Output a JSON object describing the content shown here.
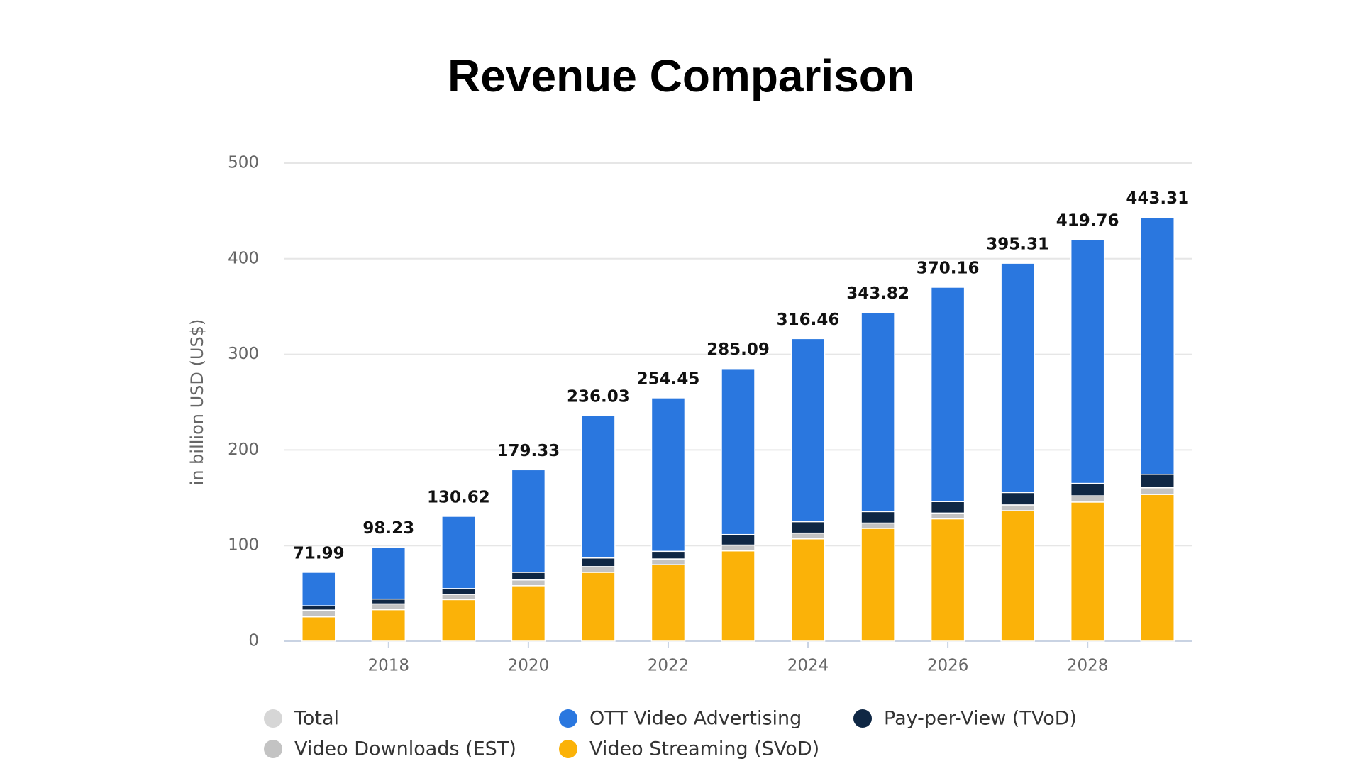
{
  "chart_data": {
    "type": "stacked-bar",
    "title": "Revenue Comparison",
    "y_label": "in billion USD (US$)",
    "categories": [
      null,
      "2018",
      null,
      "2020",
      null,
      "2022",
      null,
      "2024",
      null,
      "2026",
      null,
      "2028",
      null
    ],
    "ylim": [
      0,
      500
    ],
    "yticks": [
      0,
      100,
      200,
      300,
      400,
      500
    ],
    "grid": true,
    "series": [
      {
        "name": "Video Streaming (SVoD)",
        "color": "#fbb208",
        "values": [
          25.5,
          33,
          43.5,
          58,
          72,
          80,
          94.5,
          107,
          118,
          128,
          136.5,
          145.5,
          153.5
        ]
      },
      {
        "name": "Video Downloads (EST)",
        "color": "#c3c3c3",
        "values": [
          7,
          6,
          5.5,
          6,
          6,
          6,
          6,
          6,
          5.5,
          6,
          6,
          6.5,
          7
        ]
      },
      {
        "name": "Pay-per-View (TVoD)",
        "color": "#0f2744",
        "values": [
          4.5,
          5,
          6,
          8,
          9,
          8,
          11,
          12,
          12,
          12,
          13,
          13,
          14
        ]
      },
      {
        "name": "OTT Video Advertising",
        "color": "#2a77df",
        "values": [
          35,
          54.2,
          75.6,
          107.3,
          149,
          160.5,
          173.6,
          191.5,
          208.3,
          224.2,
          239.8,
          254.8,
          268.8
        ]
      }
    ],
    "total": {
      "name": "Total",
      "color": "#d6d6d6",
      "values": [
        71.99,
        98.23,
        130.62,
        179.33,
        236.03,
        254.45,
        285.09,
        316.46,
        343.82,
        370.16,
        395.31,
        419.76,
        443.31
      ]
    }
  }
}
